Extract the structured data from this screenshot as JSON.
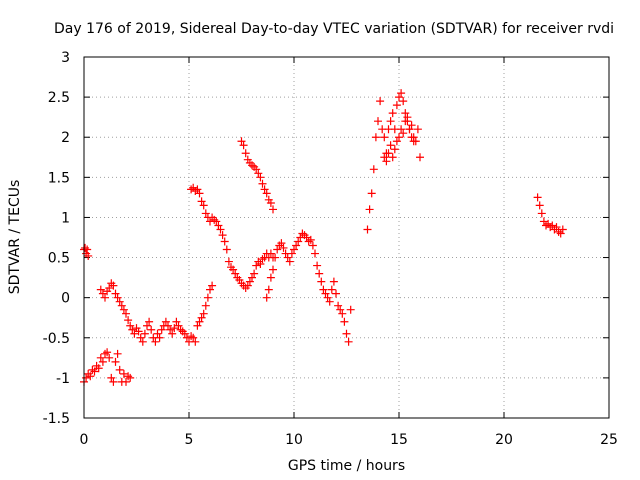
{
  "chart_data": {
    "type": "scatter",
    "title": "Day 176 of 2019, Sidereal Day-to-day VTEC variation (SDTVAR) for receiver rvdi",
    "xlabel": "GPS time / hours",
    "ylabel": "SDTVAR / TECUs",
    "xlim": [
      0,
      25
    ],
    "ylim": [
      -1.5,
      3
    ],
    "xticks": [
      0,
      5,
      10,
      15,
      20,
      25
    ],
    "xtick_labels": [
      "0",
      "5",
      "10",
      "15",
      "20",
      "25"
    ],
    "yticks": [
      -1.5,
      -1,
      -0.5,
      0,
      0.5,
      1,
      1.5,
      2,
      2.5,
      3
    ],
    "ytick_labels": [
      "-1.5",
      "-1",
      "-0.5",
      "0",
      "0.5",
      "1",
      "1.5",
      "2",
      "2.5",
      "3"
    ],
    "grid": true,
    "marker": "+",
    "color": "#ff0000",
    "series": [
      {
        "name": "SDTVAR",
        "segments": [
          {
            "x": [
              0.0,
              0.05,
              0.1,
              0.15,
              0.2
            ],
            "y": [
              0.6,
              0.62,
              0.55,
              0.6,
              0.52
            ]
          },
          {
            "x": [
              0.0,
              0.1,
              0.2,
              0.3,
              0.4,
              0.5,
              0.6,
              0.7,
              0.8,
              0.9,
              1.0,
              1.1,
              1.2,
              1.3,
              1.4,
              1.5,
              1.6,
              1.7,
              1.8,
              1.9,
              2.0,
              2.1,
              2.2
            ],
            "y": [
              -1.05,
              -1.0,
              -0.95,
              -0.98,
              -0.9,
              -0.92,
              -0.85,
              -0.88,
              -0.75,
              -0.8,
              -0.7,
              -0.68,
              -0.75,
              -1.0,
              -1.05,
              -0.8,
              -0.7,
              -0.9,
              -1.05,
              -0.95,
              -1.05,
              -0.98,
              -1.0
            ]
          },
          {
            "x": [
              0.8,
              0.9,
              1.0,
              1.1,
              1.2,
              1.3,
              1.4,
              1.5,
              1.6,
              1.7,
              1.8,
              1.9,
              2.0,
              2.1,
              2.2,
              2.3,
              2.4,
              2.5,
              2.6,
              2.7,
              2.8,
              2.9,
              3.0,
              3.1,
              3.2,
              3.3,
              3.4,
              3.5,
              3.6,
              3.7,
              3.8,
              3.9,
              4.0,
              4.1,
              4.2,
              4.3,
              4.4,
              4.5,
              4.6,
              4.7,
              4.8,
              4.9,
              5.0,
              5.1,
              5.2,
              5.3,
              5.4,
              5.5,
              5.6,
              5.7,
              5.8,
              5.9,
              6.0,
              6.1
            ],
            "y": [
              0.1,
              0.05,
              0.0,
              0.08,
              0.12,
              0.18,
              0.15,
              0.05,
              0.0,
              -0.05,
              -0.1,
              -0.15,
              -0.2,
              -0.28,
              -0.35,
              -0.4,
              -0.45,
              -0.38,
              -0.42,
              -0.5,
              -0.55,
              -0.45,
              -0.35,
              -0.3,
              -0.4,
              -0.5,
              -0.55,
              -0.45,
              -0.5,
              -0.4,
              -0.35,
              -0.3,
              -0.35,
              -0.4,
              -0.45,
              -0.38,
              -0.3,
              -0.35,
              -0.4,
              -0.42,
              -0.45,
              -0.5,
              -0.55,
              -0.48,
              -0.5,
              -0.55,
              -0.35,
              -0.3,
              -0.25,
              -0.2,
              -0.1,
              0.0,
              0.1,
              0.15
            ]
          },
          {
            "x": [
              5.1,
              5.2,
              5.3,
              5.4,
              5.5,
              5.6,
              5.7,
              5.8,
              5.9,
              6.0,
              6.1,
              6.2,
              6.3,
              6.4,
              6.5,
              6.6,
              6.7,
              6.8,
              6.9,
              7.0,
              7.1,
              7.2,
              7.3,
              7.4,
              7.5,
              7.6,
              7.7,
              7.8,
              7.9,
              8.0,
              8.1,
              8.2,
              8.3,
              8.4,
              8.5,
              8.6,
              8.7,
              8.8,
              8.9,
              9.0
            ],
            "y": [
              1.35,
              1.37,
              1.33,
              1.35,
              1.3,
              1.2,
              1.15,
              1.05,
              1.0,
              0.95,
              1.0,
              0.97,
              0.95,
              0.9,
              0.85,
              0.78,
              0.7,
              0.6,
              0.45,
              0.38,
              0.35,
              0.3,
              0.25,
              0.22,
              0.18,
              0.15,
              0.12,
              0.15,
              0.2,
              0.25,
              0.3,
              0.4,
              0.45,
              0.42,
              0.48,
              0.5,
              0.55,
              0.5,
              0.55,
              0.5
            ]
          },
          {
            "x": [
              8.7,
              8.8,
              8.9,
              9.0,
              9.1,
              9.2,
              9.3,
              9.4,
              9.5,
              9.6,
              9.7,
              9.8,
              9.9,
              10.0,
              10.1,
              10.2,
              10.3,
              10.4,
              10.5,
              10.6,
              10.7,
              10.8,
              10.9,
              11.0,
              11.1,
              11.2,
              11.3,
              11.4,
              11.5,
              11.6,
              11.7,
              11.8,
              11.9,
              12.0,
              12.1,
              12.2,
              12.3,
              12.4,
              12.5,
              12.6,
              12.7
            ],
            "y": [
              0.0,
              0.1,
              0.25,
              0.35,
              0.5,
              0.6,
              0.65,
              0.68,
              0.62,
              0.55,
              0.5,
              0.45,
              0.55,
              0.6,
              0.65,
              0.7,
              0.75,
              0.8,
              0.78,
              0.75,
              0.7,
              0.72,
              0.65,
              0.55,
              0.4,
              0.3,
              0.2,
              0.1,
              0.05,
              0.0,
              -0.05,
              0.1,
              0.2,
              0.05,
              -0.1,
              -0.15,
              -0.2,
              -0.3,
              -0.45,
              -0.55,
              -0.15
            ]
          },
          {
            "x": [
              7.5,
              7.6,
              7.7,
              7.8,
              7.9,
              8.0,
              8.1,
              8.2,
              8.3,
              8.4,
              8.5,
              8.6,
              8.7,
              8.8,
              8.9,
              9.0
            ],
            "y": [
              1.95,
              1.9,
              1.8,
              1.72,
              1.68,
              1.65,
              1.63,
              1.6,
              1.55,
              1.5,
              1.42,
              1.35,
              1.3,
              1.22,
              1.18,
              1.1
            ]
          },
          {
            "x": [
              13.5,
              13.6,
              13.7,
              13.8,
              13.9,
              14.0,
              14.1,
              14.2,
              14.3,
              14.4,
              14.5,
              14.6,
              14.7,
              14.8,
              14.9,
              15.0,
              15.1,
              15.2,
              15.3,
              15.4,
              15.5,
              15.6,
              15.7,
              15.8,
              15.9,
              16.0
            ],
            "y": [
              0.85,
              1.1,
              1.3,
              1.6,
              2.0,
              2.2,
              2.45,
              2.1,
              2.0,
              1.8,
              2.1,
              2.2,
              2.3,
              2.1,
              2.4,
              2.5,
              2.55,
              2.45,
              2.3,
              2.2,
              2.1,
              2.15,
              2.0,
              1.95,
              2.1,
              1.75
            ]
          },
          {
            "x": [
              14.3,
              14.4,
              14.5,
              14.6,
              14.7,
              14.8,
              14.9,
              15.0,
              15.1,
              15.2,
              15.3,
              15.4,
              15.5,
              15.6,
              15.7
            ],
            "y": [
              1.75,
              1.7,
              1.8,
              1.9,
              1.75,
              1.85,
              1.95,
              2.0,
              2.1,
              2.05,
              2.2,
              2.25,
              2.1,
              2.0,
              1.95
            ]
          },
          {
            "x": [
              21.6,
              21.7,
              21.8,
              21.9,
              22.0,
              22.1,
              22.2,
              22.3,
              22.4,
              22.5,
              22.6,
              22.7,
              22.8
            ],
            "y": [
              1.25,
              1.15,
              1.05,
              0.95,
              0.9,
              0.92,
              0.88,
              0.9,
              0.85,
              0.88,
              0.82,
              0.8,
              0.85
            ]
          }
        ]
      }
    ]
  }
}
